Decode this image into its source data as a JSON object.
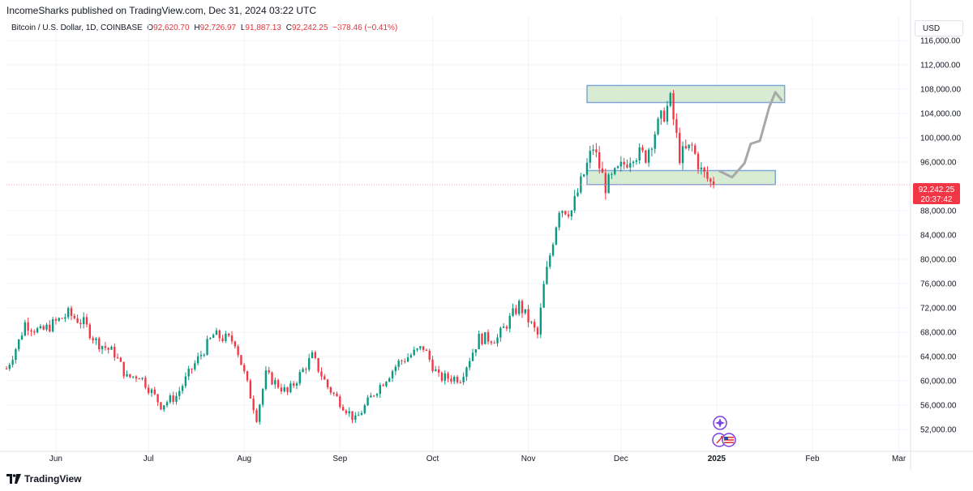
{
  "header": {
    "publish_text": "IncomeSharks published on TradingView.com, Dec 31, 2024 03:22 UTC",
    "symbol": "Bitcoin / U.S. Dollar, 1D, COINBASE",
    "ohlc": {
      "o_label": "O",
      "o_value": "92,620.70",
      "h_label": "H",
      "h_value": "92,726.97",
      "l_label": "L",
      "l_value": "91,887.13",
      "c_label": "C",
      "c_value": "92,242.25",
      "change": "−378.46 (−0.41%)"
    }
  },
  "currency_label": "USD",
  "price_tag": {
    "price": "92,242.25",
    "countdown": "20:37:42"
  },
  "footer": {
    "brand": "TradingView"
  },
  "colors": {
    "up": "#089981",
    "down": "#f23645",
    "zone_fill": "#d7ecd3",
    "zone_border": "#7fa7d9",
    "projection": "#a8a8a8",
    "price_line": "#f7a9ae",
    "tag_bg": "#f23645",
    "text": "#131722"
  },
  "icons": [
    "sparkle-icon",
    "rocket-icon",
    "us-flag-icon",
    "tradingview-logo-icon"
  ],
  "chart_data": {
    "type": "candlestick",
    "symbol": "BTCUSD",
    "interval": "1D",
    "ylim": [
      48000,
      120000
    ],
    "y_ticks": [
      52000,
      56000,
      60000,
      64000,
      68000,
      72000,
      76000,
      80000,
      84000,
      88000,
      96000,
      100000,
      104000,
      108000,
      112000,
      116000
    ],
    "y_tick_labels": [
      "52,000.00",
      "56,000.00",
      "60,000.00",
      "64,000.00",
      "68,000.00",
      "72,000.00",
      "76,000.00",
      "80,000.00",
      "84,000.00",
      "88,000.00",
      "96,000.00",
      "100,000.00",
      "104,000.00",
      "108,000.00",
      "112,000.00",
      "116,000.00"
    ],
    "x_start": "2024-05-16",
    "x_end": "2025-03-04",
    "x_ticks": [
      {
        "date": "2024-06-01",
        "label": "Jun",
        "bold": false
      },
      {
        "date": "2024-07-01",
        "label": "Jul",
        "bold": false
      },
      {
        "date": "2024-08-01",
        "label": "Aug",
        "bold": false
      },
      {
        "date": "2024-09-01",
        "label": "Sep",
        "bold": false
      },
      {
        "date": "2024-10-01",
        "label": "Oct",
        "bold": false
      },
      {
        "date": "2024-11-01",
        "label": "Nov",
        "bold": false
      },
      {
        "date": "2024-12-01",
        "label": "Dec",
        "bold": false
      },
      {
        "date": "2025-01-01",
        "label": "2025",
        "bold": true
      },
      {
        "date": "2025-02-01",
        "label": "Feb",
        "bold": false
      },
      {
        "date": "2025-03-01",
        "label": "Mar",
        "bold": false
      }
    ],
    "last_price": 92242.25,
    "closes": [
      {
        "date": "2024-05-16",
        "close": 62000
      },
      {
        "date": "2024-05-20",
        "close": 66500
      },
      {
        "date": "2024-05-22",
        "close": 69500
      },
      {
        "date": "2024-05-27",
        "close": 68000
      },
      {
        "date": "2024-06-05",
        "close": 71000
      },
      {
        "date": "2024-06-10",
        "close": 69500
      },
      {
        "date": "2024-06-14",
        "close": 66500
      },
      {
        "date": "2024-06-20",
        "close": 64500
      },
      {
        "date": "2024-06-24",
        "close": 60500
      },
      {
        "date": "2024-06-28",
        "close": 61000
      },
      {
        "date": "2024-07-05",
        "close": 56000
      },
      {
        "date": "2024-07-10",
        "close": 57500
      },
      {
        "date": "2024-07-15",
        "close": 62000
      },
      {
        "date": "2024-07-22",
        "close": 67500
      },
      {
        "date": "2024-07-29",
        "close": 66500
      },
      {
        "date": "2024-08-05",
        "close": 54000
      },
      {
        "date": "2024-08-08",
        "close": 61000
      },
      {
        "date": "2024-08-15",
        "close": 58000
      },
      {
        "date": "2024-08-23",
        "close": 64000
      },
      {
        "date": "2024-08-28",
        "close": 59000
      },
      {
        "date": "2024-09-06",
        "close": 53500
      },
      {
        "date": "2024-09-12",
        "close": 58000
      },
      {
        "date": "2024-09-20",
        "close": 63000
      },
      {
        "date": "2024-09-28",
        "close": 65500
      },
      {
        "date": "2024-10-03",
        "close": 60500
      },
      {
        "date": "2024-10-10",
        "close": 60500
      },
      {
        "date": "2024-10-16",
        "close": 67000
      },
      {
        "date": "2024-10-22",
        "close": 67000
      },
      {
        "date": "2024-10-29",
        "close": 72500
      },
      {
        "date": "2024-11-04",
        "close": 67500
      },
      {
        "date": "2024-11-06",
        "close": 75500
      },
      {
        "date": "2024-11-11",
        "close": 88500
      },
      {
        "date": "2024-11-15",
        "close": 88000
      },
      {
        "date": "2024-11-22",
        "close": 98500
      },
      {
        "date": "2024-11-26",
        "close": 92000
      },
      {
        "date": "2024-12-05",
        "close": 97500
      },
      {
        "date": "2024-12-09",
        "close": 97000
      },
      {
        "date": "2024-12-12",
        "close": 101000
      },
      {
        "date": "2024-12-17",
        "close": 106000
      },
      {
        "date": "2024-12-20",
        "close": 97000
      },
      {
        "date": "2024-12-24",
        "close": 98500
      },
      {
        "date": "2024-12-27",
        "close": 94500
      },
      {
        "date": "2024-12-30",
        "close": 92600
      },
      {
        "date": "2024-12-31",
        "close": 92242
      }
    ],
    "zones": [
      {
        "from": "2024-11-20",
        "to": "2025-01-23",
        "low": 105800,
        "high": 108600
      },
      {
        "from": "2024-11-20",
        "to": "2025-01-20",
        "low": 92300,
        "high": 94600
      }
    ],
    "projection": [
      {
        "date": "2025-01-02",
        "price": 94500
      },
      {
        "date": "2025-01-06",
        "price": 93500
      },
      {
        "date": "2025-01-10",
        "price": 95800
      },
      {
        "date": "2025-01-12",
        "price": 99000
      },
      {
        "date": "2025-01-15",
        "price": 99500
      },
      {
        "date": "2025-01-18",
        "price": 105000
      },
      {
        "date": "2025-01-20",
        "price": 107500
      },
      {
        "date": "2025-01-22",
        "price": 106200
      }
    ]
  }
}
